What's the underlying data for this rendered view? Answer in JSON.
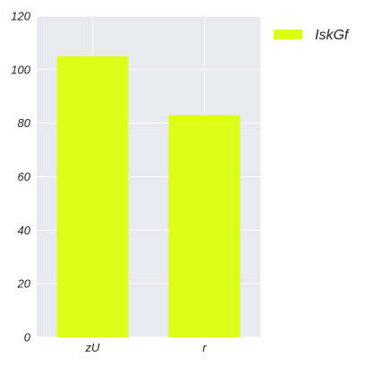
{
  "chart_data": {
    "type": "bar",
    "categories": [
      "zU",
      "r"
    ],
    "series": [
      {
        "name": "IskGf",
        "values": [
          105,
          83
        ],
        "color": "#dcff18"
      }
    ],
    "title": "",
    "xlabel": "",
    "ylabel": "",
    "ylim": [
      0,
      120
    ],
    "yticks": [
      0,
      20,
      40,
      60,
      80,
      100,
      120
    ],
    "grid": true,
    "legend_position": "outside-top-right",
    "plot_background": "#e9e9f1",
    "grid_color": "#ffffff"
  }
}
